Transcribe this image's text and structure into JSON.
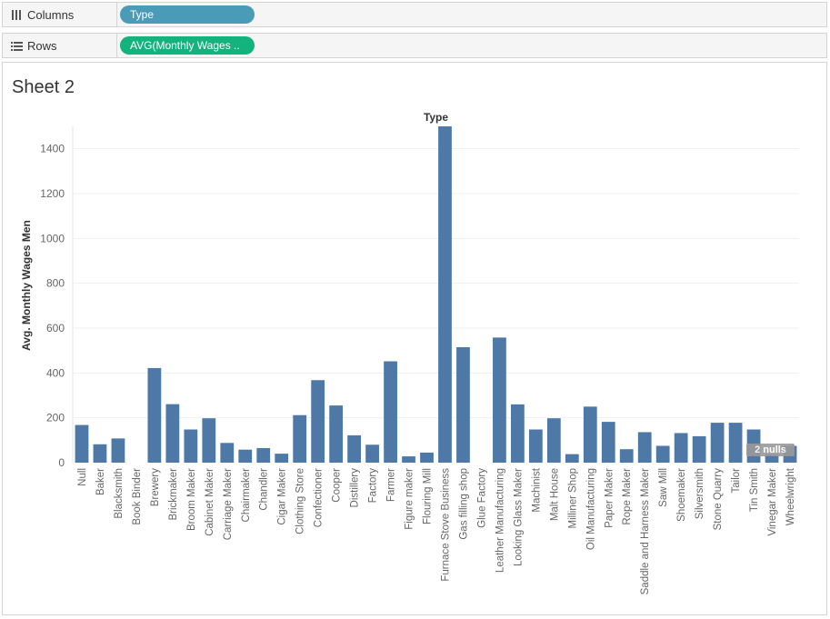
{
  "shelves": {
    "columns": {
      "label": "Columns",
      "icon": "columns-icon",
      "pill": "Type",
      "pill_color": "#4a9bb8"
    },
    "rows": {
      "label": "Rows",
      "icon": "rows-icon",
      "pill": "AVG(Monthly Wages ..",
      "pill_color": "#14b37d"
    }
  },
  "sheet": {
    "title": "Sheet 2"
  },
  "nulls_badge": "2 nulls",
  "chart_data": {
    "type": "bar",
    "title": "Type",
    "xlabel": "",
    "ylabel": "Avg. Monthly Wages Men",
    "ylim": [
      0,
      1500
    ],
    "yticks": [
      0,
      200,
      400,
      600,
      800,
      1000,
      1200,
      1400
    ],
    "bar_color": "#4e79a7",
    "gridlines": true,
    "categories": [
      "Null",
      "Baker",
      "Blacksmith",
      "Book Binder",
      "Brewery",
      "Brickmaker",
      "Broom Maker",
      "Cabinet Maker",
      "Carriage Maker",
      "Chairmaker",
      "Chandler",
      "Cigar Maker",
      "Clothing Store",
      "Confectioner",
      "Cooper",
      "Distillery",
      "Factory",
      "Farmer",
      "Figure maker",
      "Flouring Mill",
      "Furnace Stove Business",
      "Gas filling shop",
      "Glue Factory",
      "Leather Manufacturing",
      "Looking Glass Maker",
      "Machinist",
      "Malt House",
      "Milliner Shop",
      "Oil Manufacturing",
      "Paper Maker",
      "Rope Maker",
      "Saddle and Harness Maker",
      "Saw Mill",
      "Shoemaker",
      "Silversmith",
      "Stone Quarry",
      "Tailor",
      "Tin Smith",
      "Vinegar Maker",
      "Wheelwright"
    ],
    "values": [
      168,
      82,
      108,
      null,
      422,
      261,
      148,
      198,
      88,
      58,
      65,
      40,
      212,
      368,
      255,
      122,
      80,
      452,
      28,
      45,
      1500,
      515,
      null,
      558,
      260,
      148,
      198,
      38,
      250,
      182,
      60,
      136,
      75,
      132,
      118,
      178,
      178,
      148,
      38,
      75
    ]
  }
}
